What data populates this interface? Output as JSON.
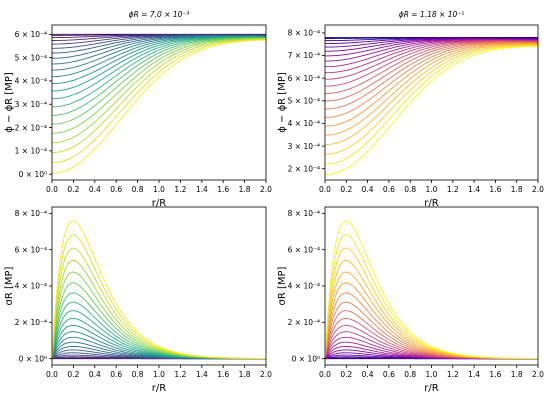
{
  "chart_data": [
    {
      "type": "line",
      "title": "ϕR = 7.0 × 10⁻³",
      "xlabel": "r/R",
      "ylabel": "ϕ − ϕR [MP]",
      "xlim": [
        0,
        2.0
      ],
      "ylim": [
        -0.25,
        6.4
      ],
      "x_ticks": [
        0.0,
        0.2,
        0.4,
        0.6,
        0.8,
        1.0,
        1.2,
        1.4,
        1.6,
        1.8,
        2.0
      ],
      "x_tick_labels": [
        "0.0",
        "0.2",
        "0.4",
        "0.6",
        "0.8",
        "1.0",
        "1.2",
        "1.4",
        "1.6",
        "1.8",
        "2.0"
      ],
      "y_ticks": [
        0,
        1,
        2,
        3,
        4,
        5,
        6
      ],
      "y_tick_labels": [
        "0 × 10⁰",
        "1 × 10⁻⁴",
        "2 × 10⁻⁴",
        "3 × 10⁻⁴",
        "4 × 10⁻⁴",
        "5 × 10⁻⁴",
        "6 × 10⁻⁴"
      ],
      "y_unit": "×10⁻⁴",
      "colormap": "viridis",
      "num_curves": 22,
      "series": [
        {
          "x": [
            0.0,
            0.5,
            1.0,
            1.5,
            2.0
          ],
          "values": [
            0.2,
            3.3,
            4.7,
            5.2,
            5.5
          ]
        },
        {
          "x": [
            0.0,
            0.5,
            1.0,
            1.5,
            2.0
          ],
          "values": [
            1.3,
            3.9,
            5.0,
            5.4,
            5.6
          ]
        },
        {
          "x": [
            0.0,
            0.5,
            1.0,
            1.5,
            2.0
          ],
          "values": [
            2.3,
            4.4,
            5.3,
            5.6,
            5.75
          ]
        },
        {
          "x": [
            0.0,
            0.5,
            1.0,
            1.5,
            2.0
          ],
          "values": [
            3.3,
            4.9,
            5.55,
            5.75,
            5.85
          ]
        },
        {
          "x": [
            0.0,
            0.5,
            1.0,
            1.5,
            2.0
          ],
          "values": [
            4.1,
            5.25,
            5.7,
            5.85,
            5.92
          ]
        },
        {
          "x": [
            0.0,
            0.5,
            1.0,
            1.5,
            2.0
          ],
          "values": [
            6.0,
            6.0,
            6.0,
            6.0,
            6.0
          ]
        }
      ]
    },
    {
      "type": "line",
      "title": "ϕR = 1.18 × 10⁻¹",
      "xlabel": "r/R",
      "ylabel": "ϕ − ϕR [MP]",
      "xlim": [
        0,
        2.0
      ],
      "ylim": [
        1.5,
        8.35
      ],
      "x_ticks": [
        0.0,
        0.2,
        0.4,
        0.6,
        0.8,
        1.0,
        1.2,
        1.4,
        1.6,
        1.8,
        2.0
      ],
      "x_tick_labels": [
        "0.0",
        "0.2",
        "0.4",
        "0.6",
        "0.8",
        "1.0",
        "1.2",
        "1.4",
        "1.6",
        "1.8",
        "2.0"
      ],
      "y_ticks": [
        2,
        3,
        4,
        5,
        6,
        7,
        8
      ],
      "y_tick_labels": [
        "2 × 10⁻⁴",
        "3 × 10⁻⁴",
        "4 × 10⁻⁴",
        "5 × 10⁻⁴",
        "6 × 10⁻⁴",
        "7 × 10⁻⁴",
        "8 × 10⁻⁴"
      ],
      "y_unit": "×10⁻⁴",
      "colormap": "plasma",
      "num_curves": 22,
      "series": [
        {
          "x": [
            0.0,
            0.5,
            1.0,
            1.5,
            2.0
          ],
          "values": [
            1.9,
            5.6,
            6.8,
            7.2,
            7.35
          ]
        },
        {
          "x": [
            0.0,
            0.5,
            1.0,
            1.5,
            2.0
          ],
          "values": [
            3.0,
            6.1,
            7.0,
            7.35,
            7.45
          ]
        },
        {
          "x": [
            0.0,
            0.5,
            1.0,
            1.5,
            2.0
          ],
          "values": [
            4.1,
            6.6,
            7.25,
            7.5,
            7.6
          ]
        },
        {
          "x": [
            0.0,
            0.5,
            1.0,
            1.5,
            2.0
          ],
          "values": [
            7.75,
            7.75,
            7.75,
            7.75,
            7.75
          ]
        }
      ]
    },
    {
      "type": "line",
      "title": "",
      "xlabel": "r/R",
      "ylabel": "σR [MP]",
      "xlim": [
        0,
        2.0
      ],
      "ylim": [
        -0.35,
        8.35
      ],
      "x_ticks": [
        0.0,
        0.2,
        0.4,
        0.6,
        0.8,
        1.0,
        1.2,
        1.4,
        1.6,
        1.8,
        2.0
      ],
      "x_tick_labels": [
        "0.0",
        "0.2",
        "0.4",
        "0.6",
        "0.8",
        "1.0",
        "1.2",
        "1.4",
        "1.6",
        "1.8",
        "2.0"
      ],
      "y_ticks": [
        0,
        2,
        4,
        6,
        8
      ],
      "y_tick_labels": [
        "0 × 10⁰",
        "2 × 10⁻⁴",
        "4 × 10⁻⁴",
        "6 × 10⁻⁴",
        "8 × 10⁻⁴"
      ],
      "y_unit": "×10⁻⁴",
      "colormap": "viridis",
      "num_curves": 22,
      "series": [
        {
          "x": [
            0.0,
            0.2,
            0.5,
            1.0,
            2.0
          ],
          "values": [
            0.0,
            7.7,
            5.0,
            1.7,
            0.3
          ]
        },
        {
          "x": [
            0.0,
            0.2,
            0.5,
            1.0,
            2.0
          ],
          "values": [
            0.0,
            6.0,
            3.9,
            1.3,
            0.25
          ]
        },
        {
          "x": [
            0.0,
            0.2,
            0.5,
            1.0,
            2.0
          ],
          "values": [
            0.0,
            3.4,
            2.2,
            0.8,
            0.15
          ]
        }
      ]
    },
    {
      "type": "line",
      "title": "",
      "xlabel": "r/R",
      "ylabel": "σR [MP]",
      "xlim": [
        0,
        2.0
      ],
      "ylim": [
        -0.35,
        8.35
      ],
      "x_ticks": [
        0.0,
        0.2,
        0.4,
        0.6,
        0.8,
        1.0,
        1.2,
        1.4,
        1.6,
        1.8,
        2.0
      ],
      "x_tick_labels": [
        "0.0",
        "0.2",
        "0.4",
        "0.6",
        "0.8",
        "1.0",
        "1.2",
        "1.4",
        "1.6",
        "1.8",
        "2.0"
      ],
      "y_ticks": [
        0,
        2,
        4,
        6,
        8
      ],
      "y_tick_labels": [
        "0 × 10⁰",
        "2 × 10⁻⁴",
        "4 × 10⁻⁴",
        "6 × 10⁻⁴",
        "8 × 10⁻⁴"
      ],
      "y_unit": "×10⁻⁴",
      "colormap": "plasma",
      "num_curves": 22,
      "series": [
        {
          "x": [
            0.0,
            0.2,
            0.5,
            1.0,
            2.0
          ],
          "values": [
            0.0,
            7.7,
            5.1,
            1.8,
            0.35
          ]
        },
        {
          "x": [
            0.0,
            0.2,
            0.5,
            1.0,
            2.0
          ],
          "values": [
            0.0,
            6.1,
            4.0,
            1.4,
            0.28
          ]
        },
        {
          "x": [
            0.0,
            0.2,
            0.5,
            1.0,
            2.0
          ],
          "values": [
            0.0,
            3.5,
            2.3,
            0.8,
            0.16
          ]
        }
      ]
    }
  ]
}
